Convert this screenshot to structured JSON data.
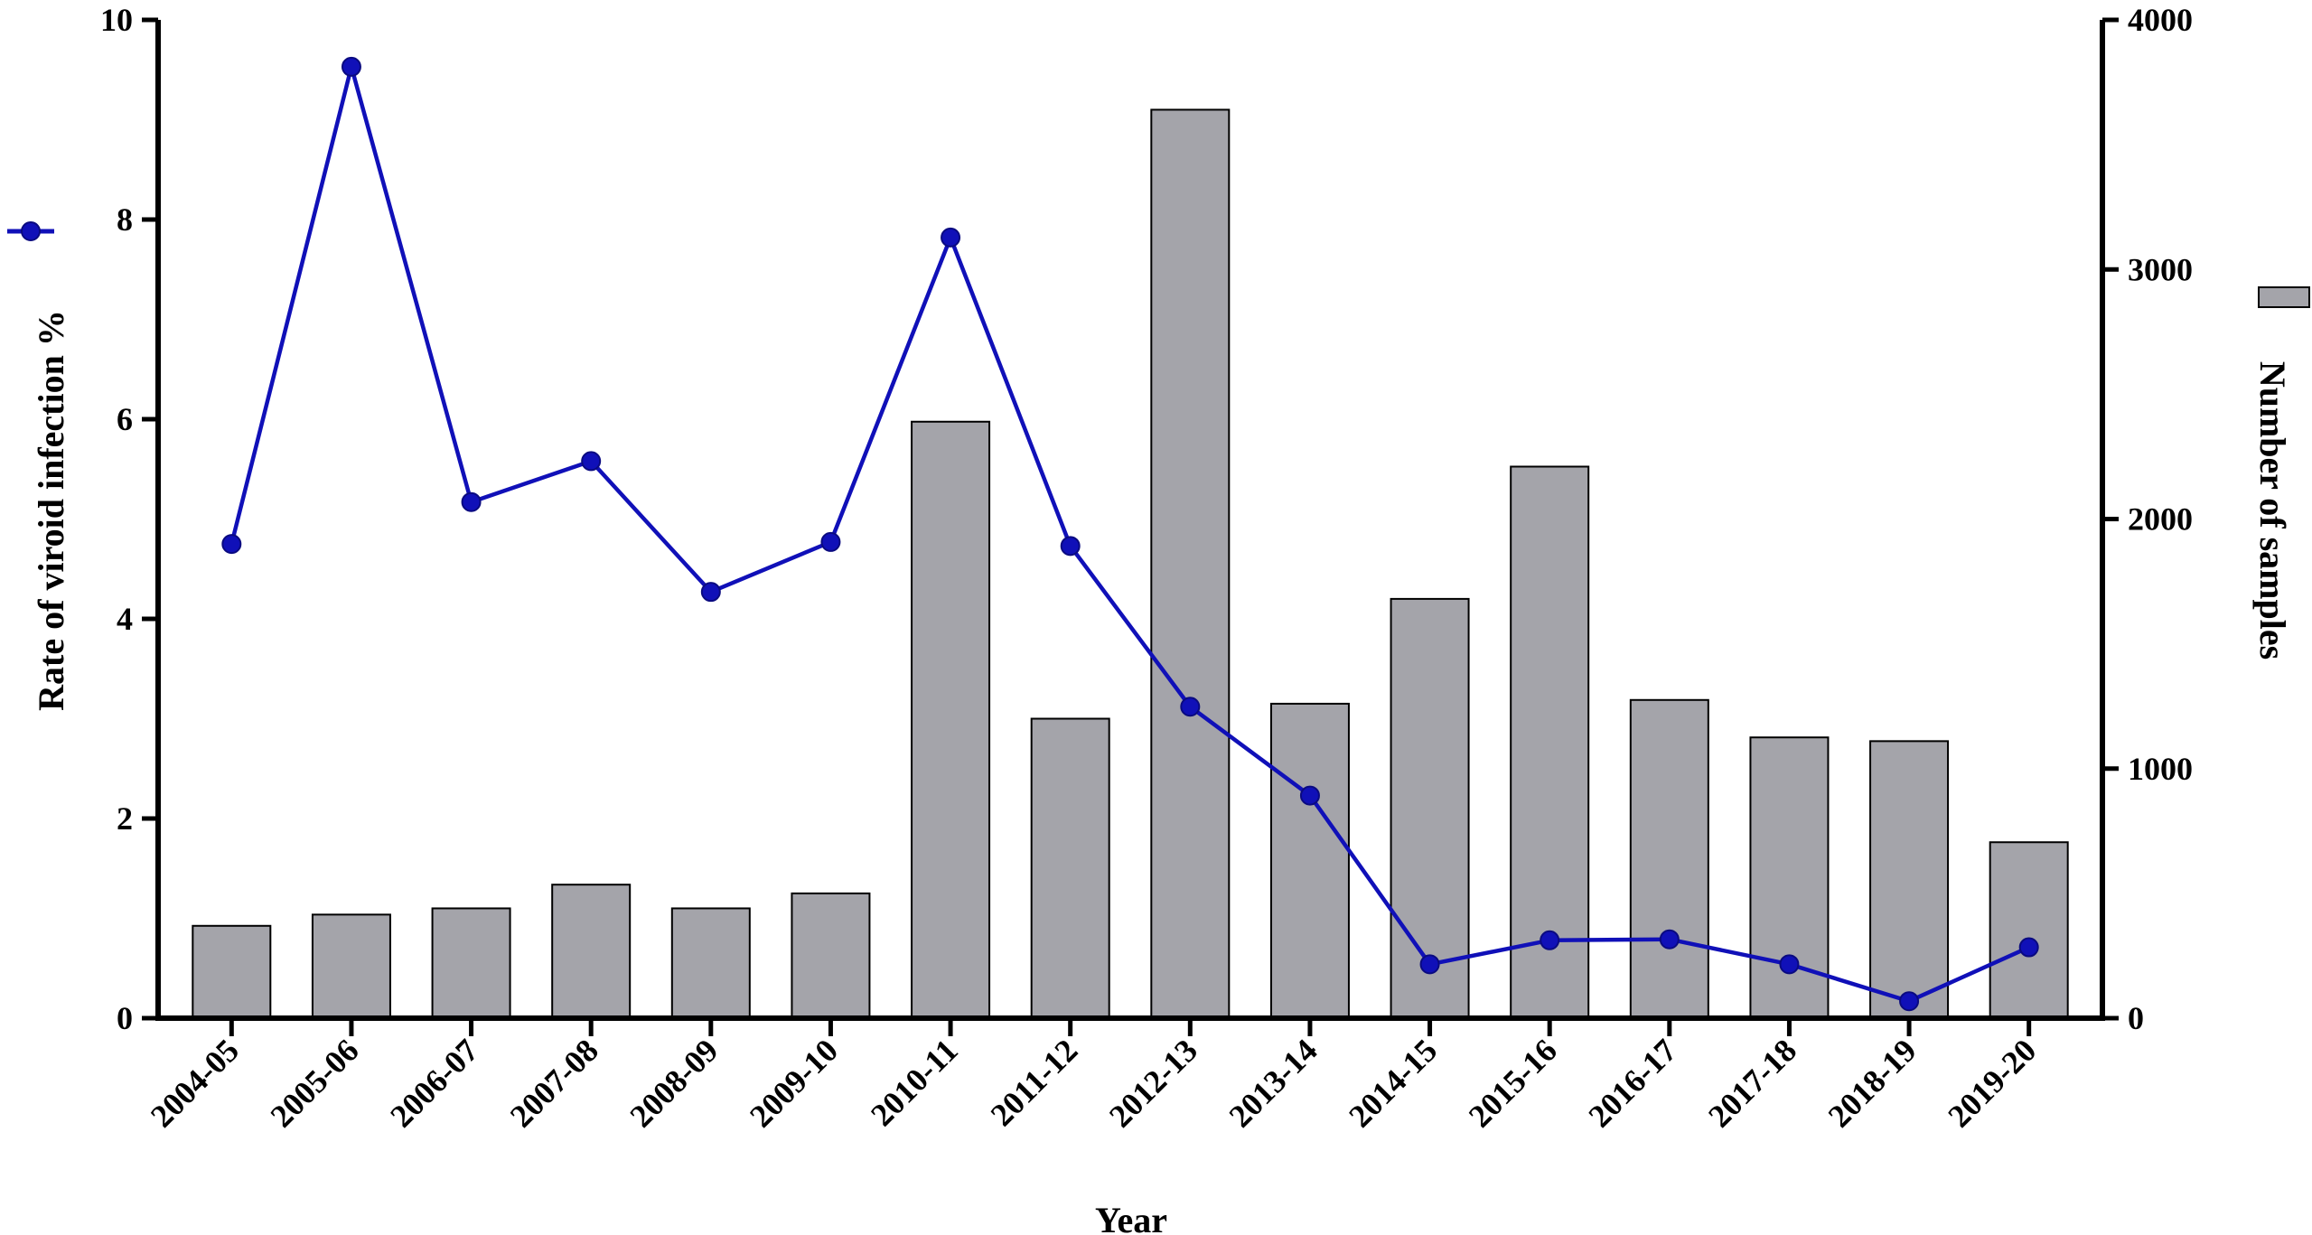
{
  "chart_data": {
    "type": "bar+line",
    "title": "",
    "xlabel": "Year",
    "ylabel_left": "Rate of viroid infection %",
    "ylabel_right": "Number of samples",
    "categories": [
      "2004-05",
      "2005-06",
      "2006-07",
      "2007-08",
      "2008-09",
      "2009-10",
      "2010-11",
      "2011-12",
      "2012-13",
      "2013-14",
      "2014-15",
      "2015-16",
      "2016-17",
      "2017-18",
      "2018-19",
      "2019-20"
    ],
    "left_axis": {
      "min": 0,
      "max": 10,
      "ticks": [
        0,
        2,
        4,
        6,
        8,
        10
      ]
    },
    "right_axis": {
      "min": 0,
      "max": 4000,
      "ticks": [
        0,
        1000,
        2000,
        3000,
        4000
      ]
    },
    "series": [
      {
        "kind": "bar",
        "axis": "right",
        "color": "#a4a4aa",
        "values": [
          370,
          415,
          440,
          535,
          440,
          500,
          2390,
          1200,
          3640,
          1260,
          1680,
          2210,
          1275,
          1125,
          1110,
          705
        ]
      },
      {
        "kind": "line",
        "axis": "left",
        "color": "#1010b8",
        "values": [
          4.75,
          9.53,
          5.17,
          5.58,
          4.27,
          4.77,
          7.82,
          4.73,
          3.12,
          2.23,
          0.54,
          0.78,
          0.79,
          0.54,
          0.17,
          0.71
        ]
      }
    ],
    "grid": false,
    "legend": "axis-side markers: line marker beside left axis title, bar swatch beside right axis title"
  }
}
